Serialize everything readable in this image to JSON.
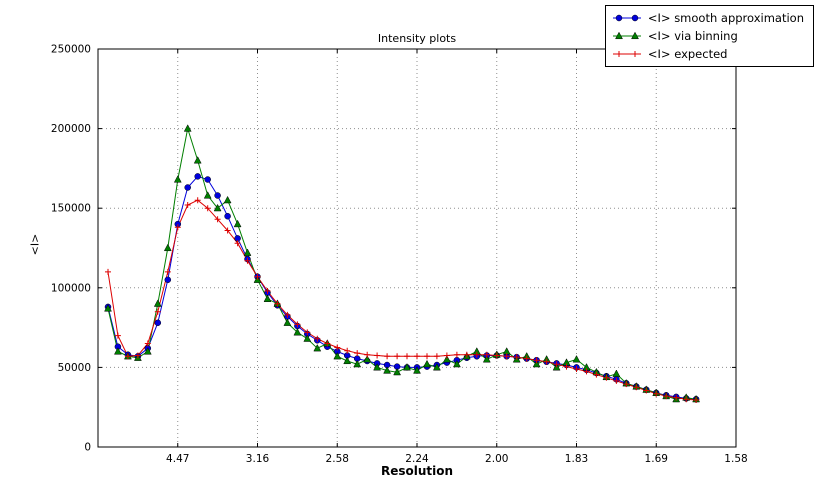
{
  "chart_data": {
    "type": "line",
    "title": "Intensity plots",
    "xlabel": "Resolution",
    "ylabel": "<I>",
    "grid": true,
    "legend_position": "upper right",
    "xlim": [
      0,
      0.4
    ],
    "ylim": [
      0,
      250000
    ],
    "xticks": {
      "positions": [
        0.05,
        0.1,
        0.15,
        0.2,
        0.25,
        0.3,
        0.35,
        0.4
      ],
      "labels": [
        "4.47",
        "3.16",
        "2.58",
        "2.24",
        "2.00",
        "1.83",
        "1.69",
        "1.58"
      ]
    },
    "yticks": {
      "positions": [
        0,
        50000,
        100000,
        150000,
        200000,
        250000
      ],
      "labels": [
        "0",
        "50000",
        "100000",
        "150000",
        "200000",
        "250000"
      ]
    },
    "x": [
      0.00625,
      0.0125,
      0.01875,
      0.025,
      0.03125,
      0.0375,
      0.04375,
      0.05,
      0.05625,
      0.0625,
      0.06875,
      0.075,
      0.08125,
      0.0875,
      0.09375,
      0.1,
      0.10625,
      0.1125,
      0.11875,
      0.125,
      0.13125,
      0.1375,
      0.14375,
      0.15,
      0.15625,
      0.1625,
      0.16875,
      0.175,
      0.18125,
      0.1875,
      0.19375,
      0.2,
      0.20625,
      0.2125,
      0.21875,
      0.225,
      0.23125,
      0.2375,
      0.24375,
      0.25,
      0.25625,
      0.2625,
      0.26875,
      0.275,
      0.28125,
      0.2875,
      0.29375,
      0.3,
      0.30625,
      0.3125,
      0.31875,
      0.325,
      0.33125,
      0.3375,
      0.34375,
      0.35,
      0.35625,
      0.3625,
      0.36875,
      0.375
    ],
    "series": [
      {
        "name": "<I> smooth approximation",
        "color": "#0000dd",
        "marker": "circle",
        "values": [
          88000,
          63000,
          58000,
          57000,
          62000,
          78000,
          105000,
          140000,
          163000,
          170000,
          168000,
          158000,
          145000,
          131000,
          118000,
          107000,
          97000,
          89000,
          82000,
          76000,
          71000,
          67000,
          63000,
          60000,
          57500,
          55500,
          54000,
          52500,
          51500,
          50500,
          50000,
          50000,
          50500,
          51500,
          53000,
          54500,
          56000,
          57000,
          57500,
          57500,
          57000,
          56500,
          55500,
          54500,
          53500,
          52500,
          51500,
          50000,
          48500,
          46500,
          44500,
          42500,
          40000,
          38000,
          36000,
          34000,
          32500,
          31500,
          30500,
          30000
        ]
      },
      {
        "name": "<I> via binning",
        "color": "#007f00",
        "marker": "triangle",
        "values": [
          87000,
          60000,
          57000,
          56000,
          60000,
          90000,
          125000,
          168000,
          200000,
          180000,
          158000,
          150000,
          155000,
          140000,
          122000,
          105000,
          93000,
          90000,
          78000,
          72000,
          68000,
          62000,
          65000,
          57000,
          54000,
          52000,
          55000,
          50000,
          48000,
          47000,
          50000,
          48000,
          52000,
          50000,
          55000,
          52000,
          57000,
          60000,
          55000,
          58000,
          60000,
          55000,
          57000,
          52000,
          55000,
          50000,
          53000,
          55000,
          50000,
          47000,
          44000,
          46000,
          40000,
          38000,
          36000,
          34000,
          32000,
          30000,
          31000,
          30000
        ]
      },
      {
        "name": "<I> expected",
        "color": "#dd0000",
        "marker": "plus",
        "values": [
          110000,
          70000,
          57000,
          57500,
          65000,
          85000,
          110000,
          138000,
          152000,
          155000,
          150000,
          143000,
          136000,
          128000,
          117000,
          107000,
          98000,
          90000,
          83000,
          77000,
          72000,
          68000,
          65000,
          62500,
          60500,
          59000,
          58000,
          57500,
          57000,
          57000,
          57000,
          57000,
          57000,
          57000,
          57500,
          58000,
          58000,
          58000,
          58000,
          57500,
          57000,
          56500,
          55500,
          54500,
          53500,
          52000,
          50500,
          49000,
          47500,
          45500,
          43500,
          41500,
          39500,
          37500,
          35500,
          33500,
          32000,
          31000,
          30000,
          29500
        ]
      }
    ]
  }
}
